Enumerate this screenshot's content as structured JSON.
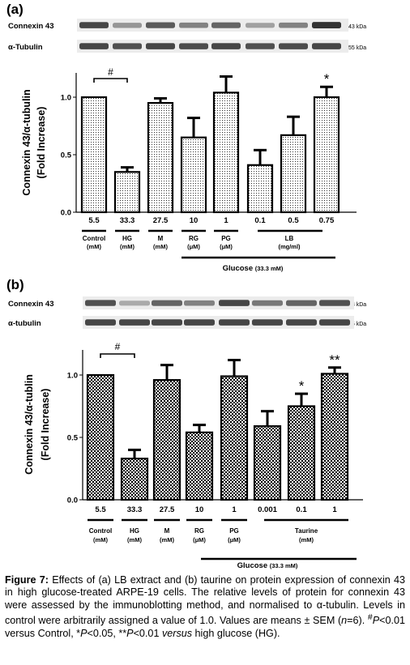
{
  "panels": [
    {
      "panel_label": "(a)",
      "blots": [
        {
          "protein": "Connexin 43",
          "size": "43 kDa",
          "intensities": [
            0.85,
            0.45,
            0.75,
            0.55,
            0.7,
            0.4,
            0.55,
            0.95
          ]
        },
        {
          "protein": "α-Tubulin",
          "size": "55 kDa",
          "intensities": [
            0.85,
            0.8,
            0.85,
            0.82,
            0.85,
            0.8,
            0.82,
            0.85
          ]
        }
      ],
      "ylabel_line1": "Connexin 43/α-tubulin",
      "ylabel_line2": "(Fold Increase)",
      "dose_labels": [
        "5.5",
        "33.3",
        "27.5",
        "10",
        "1",
        "0.1",
        "0.5",
        "0.75"
      ],
      "groups": [
        {
          "name": "Control",
          "unit": "(mM)"
        },
        {
          "name": "HG",
          "unit": "(mM)"
        },
        {
          "name": "M",
          "unit": "(mM)"
        },
        {
          "name": "RG",
          "unit": "(μM)"
        },
        {
          "name": "PG",
          "unit": "(μM)"
        },
        {
          "name": "LB",
          "unit": "(mg/ml)"
        }
      ],
      "glucose_label": "Glucose",
      "glucose_sub": "(33.3 mM)",
      "sig_hash": "#",
      "sig_star": "*"
    },
    {
      "panel_label": "(b)",
      "blots": [
        {
          "protein": "Connexin 43",
          "size": "43 kDa",
          "intensities": [
            0.8,
            0.35,
            0.7,
            0.55,
            0.85,
            0.6,
            0.7,
            0.8
          ]
        },
        {
          "protein": "α-tubulin",
          "size": "55 kDa",
          "intensities": [
            0.85,
            0.85,
            0.85,
            0.85,
            0.85,
            0.85,
            0.85,
            0.85
          ]
        }
      ],
      "ylabel_line1": "Connexin 43/α-tublin",
      "ylabel_line2": "(Fold Increase)",
      "dose_labels": [
        "5.5",
        "33.3",
        "27.5",
        "10",
        "1",
        "0.001",
        "0.1",
        "1"
      ],
      "groups": [
        {
          "name": "Control",
          "unit": "(mM)"
        },
        {
          "name": "HG",
          "unit": "(mM)"
        },
        {
          "name": "M",
          "unit": "(mM)"
        },
        {
          "name": "RG",
          "unit": "(μM)"
        },
        {
          "name": "PG",
          "unit": "(μM)"
        },
        {
          "name": "Taurine",
          "unit": "(mM)"
        }
      ],
      "glucose_label": "Glucose",
      "glucose_sub": "(33.3 mM)",
      "sig_hash": "#",
      "sig_star": "*",
      "sig_dstar": "**"
    }
  ],
  "chart_data": [
    {
      "type": "bar",
      "panel": "(a)",
      "categories": [
        "5.5",
        "33.3",
        "27.5",
        "10",
        "1",
        "0.1",
        "0.5",
        "0.75"
      ],
      "values": [
        1.0,
        0.35,
        0.95,
        0.65,
        1.04,
        0.41,
        0.67,
        1.0
      ],
      "errors": [
        0.0,
        0.04,
        0.04,
        0.17,
        0.14,
        0.13,
        0.16,
        0.09
      ],
      "ylabel": "Connexin 43/α-tubulin (Fold Increase)",
      "ylim": [
        0,
        1.0
      ],
      "yticks": [
        "0.0",
        "0.5",
        "1.0"
      ],
      "significance": [
        {
          "bar": 1,
          "mark": "#",
          "versus": 0
        },
        {
          "bar": 7,
          "mark": "*"
        }
      ]
    },
    {
      "type": "bar",
      "panel": "(b)",
      "categories": [
        "5.5",
        "33.3",
        "27.5",
        "10",
        "1",
        "0.001",
        "0.1",
        "1"
      ],
      "values": [
        1.0,
        0.33,
        0.96,
        0.54,
        0.99,
        0.59,
        0.75,
        1.01
      ],
      "errors": [
        0.0,
        0.07,
        0.12,
        0.06,
        0.13,
        0.12,
        0.1,
        0.05
      ],
      "ylabel": "Connexin 43/α-tublin (Fold Increase)",
      "ylim": [
        0,
        1.0
      ],
      "yticks": [
        "0.0",
        "0.5",
        "1.0"
      ],
      "significance": [
        {
          "bar": 1,
          "mark": "#",
          "versus": 0
        },
        {
          "bar": 6,
          "mark": "*"
        },
        {
          "bar": 7,
          "mark": "**"
        }
      ]
    }
  ],
  "caption": {
    "label": "Figure 7:",
    "text": "Effects of (a) LB extract and (b) taurine on protein expression of connexin 43 in high glucose-treated ARPE-19 cells. The relative levels of protein for connexin 43 were assessed by the immunoblotting method, and normalised to α-tubulin. Levels in control were arbitrarily assigned a value of 1.0. Values are means ± SEM (",
    "n_text": "n",
    "text2": "=6). ",
    "sup_hash": "#",
    "p1": "P",
    "text3": "<0.01 versus Control, *",
    "p2": "P",
    "text4": "<0.05, **",
    "p3": "P",
    "text5": "<0.01 ",
    "versus": "versus",
    "text6": " high glucose (HG)."
  }
}
